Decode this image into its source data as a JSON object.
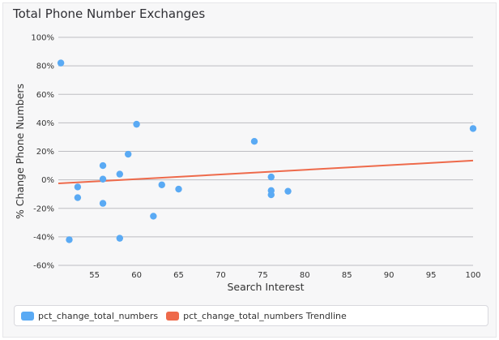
{
  "chart_data": {
    "type": "scatter",
    "title": "Total Phone Number Exchanges",
    "xlabel": "Search Interest",
    "ylabel": "% Change Phone Numbers",
    "xlim": [
      50.7,
      100
    ],
    "ylim": [
      -60,
      100
    ],
    "x_ticks": [
      55,
      60,
      65,
      70,
      75,
      80,
      85,
      90,
      95,
      100
    ],
    "x_tick_labels": [
      "55",
      "60",
      "65",
      "70",
      "75",
      "80",
      "85",
      "90",
      "95",
      "100"
    ],
    "y_ticks": [
      -60,
      -40,
      -20,
      0,
      20,
      40,
      60,
      80,
      100
    ],
    "y_tick_labels": [
      "-60%",
      "-40%",
      "-20%",
      "0%",
      "20%",
      "40%",
      "60%",
      "80%",
      "100%"
    ],
    "grid": true,
    "legend_position": "bottom",
    "series": [
      {
        "name": "pct_change_total_numbers",
        "kind": "scatter",
        "color": "#5aaaf4",
        "points": [
          {
            "x": 51,
            "y": 82
          },
          {
            "x": 52,
            "y": -42
          },
          {
            "x": 53,
            "y": -5
          },
          {
            "x": 53,
            "y": -12.5
          },
          {
            "x": 56,
            "y": 10
          },
          {
            "x": 56,
            "y": 0.5
          },
          {
            "x": 56,
            "y": -16.5
          },
          {
            "x": 58,
            "y": 4
          },
          {
            "x": 58,
            "y": -41
          },
          {
            "x": 59,
            "y": 18
          },
          {
            "x": 60,
            "y": 39
          },
          {
            "x": 62,
            "y": -25.5
          },
          {
            "x": 63,
            "y": -3.5
          },
          {
            "x": 65,
            "y": -6.5
          },
          {
            "x": 74,
            "y": 27
          },
          {
            "x": 76,
            "y": 2
          },
          {
            "x": 76,
            "y": -7.5
          },
          {
            "x": 76,
            "y": -10.5
          },
          {
            "x": 78,
            "y": -8
          },
          {
            "x": 100,
            "y": 36
          }
        ]
      },
      {
        "name": "pct_change_total_numbers Trendline",
        "kind": "line",
        "color": "#ee6a4b",
        "points": [
          {
            "x": 50.7,
            "y": -2.5
          },
          {
            "x": 100,
            "y": 13.5
          }
        ]
      }
    ]
  }
}
